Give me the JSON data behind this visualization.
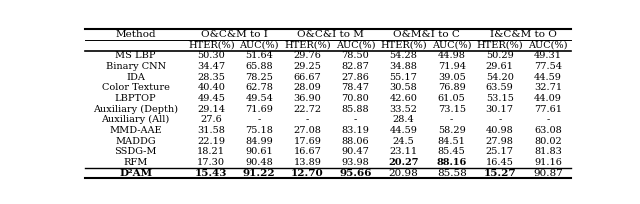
{
  "col_groups": [
    "O&C&M to I",
    "O&C&I to M",
    "O&M&I to C",
    "I&C&M to O"
  ],
  "rows": [
    [
      "MS LBP",
      "50.30",
      "51.64",
      "29.76",
      "78.50",
      "54.28",
      "44.98",
      "50.29",
      "49.31"
    ],
    [
      "Binary CNN",
      "34.47",
      "65.88",
      "29.25",
      "82.87",
      "34.88",
      "71.94",
      "29.61",
      "77.54"
    ],
    [
      "IDA",
      "28.35",
      "78.25",
      "66.67",
      "27.86",
      "55.17",
      "39.05",
      "54.20",
      "44.59"
    ],
    [
      "Color Texture",
      "40.40",
      "62.78",
      "28.09",
      "78.47",
      "30.58",
      "76.89",
      "63.59",
      "32.71"
    ],
    [
      "LBPTOP",
      "49.45",
      "49.54",
      "36.90",
      "70.80",
      "42.60",
      "61.05",
      "53.15",
      "44.09"
    ],
    [
      "Auxiliary (Depth)",
      "29.14",
      "71.69",
      "22.72",
      "85.88",
      "33.52",
      "73.15",
      "30.17",
      "77.61"
    ],
    [
      "Auxiliary (All)",
      "27.6",
      "-",
      "-",
      "-",
      "28.4",
      "-",
      "-",
      "-"
    ],
    [
      "MMD-AAE",
      "31.58",
      "75.18",
      "27.08",
      "83.19",
      "44.59",
      "58.29",
      "40.98",
      "63.08"
    ],
    [
      "MADDG",
      "22.19",
      "84.99",
      "17.69",
      "88.06",
      "24.5",
      "84.51",
      "27.98",
      "80.02"
    ],
    [
      "SSDG-M",
      "18.21",
      "90.61",
      "16.67",
      "90.47",
      "23.11",
      "85.45",
      "25.17",
      "81.83"
    ],
    [
      "RFM",
      "17.30",
      "90.48",
      "13.89",
      "93.98",
      "20.27",
      "88.16",
      "16.45",
      "91.16"
    ]
  ],
  "last_row": [
    "D²AM",
    "15.43",
    "91.22",
    "12.70",
    "95.66",
    "20.98",
    "85.58",
    "15.27",
    "90.87"
  ],
  "rfm_bold_cols": [
    5,
    6
  ],
  "d2am_bold_cols": [
    0,
    1,
    2,
    3,
    4,
    7
  ],
  "font_size": 7.0,
  "header_font_size": 7.5
}
